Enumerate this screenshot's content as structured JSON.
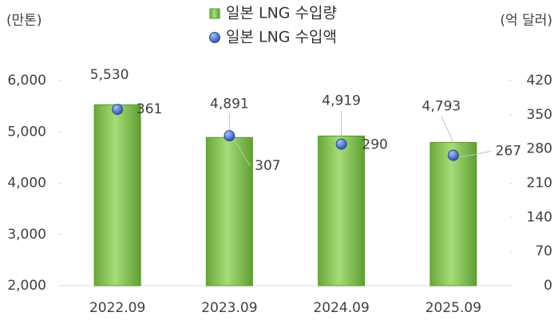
{
  "chart_data": {
    "type": "bar",
    "categories": [
      "2022.09",
      "2023.09",
      "2024.09",
      "2025.09"
    ],
    "y_label": "(만톤)",
    "y2_label": "(억 달러)",
    "ylim": [
      2000,
      6000
    ],
    "yticks": [
      {
        "value": 2000,
        "label": "2,000"
      },
      {
        "value": 3000,
        "label": "3,000"
      },
      {
        "value": 4000,
        "label": "4,000"
      },
      {
        "value": 5000,
        "label": "5,000"
      },
      {
        "value": 6000,
        "label": "6,000"
      }
    ],
    "y2lim": [
      0,
      420
    ],
    "y2ticks": [
      0,
      70,
      140,
      210,
      280,
      350,
      420
    ],
    "series": [
      {
        "name": "일본 LNG 수입량",
        "type": "bar",
        "color": "#7cc04b",
        "values": [
          5530,
          4891,
          4919,
          4793
        ],
        "value_labels": [
          "5,530",
          "4,891",
          "4,919",
          "4,793"
        ]
      },
      {
        "name": "일본 LNG 수입액",
        "type": "scatter",
        "axis": "y2",
        "color": "#3a67c4",
        "values": [
          361,
          307,
          290,
          267
        ]
      }
    ]
  }
}
